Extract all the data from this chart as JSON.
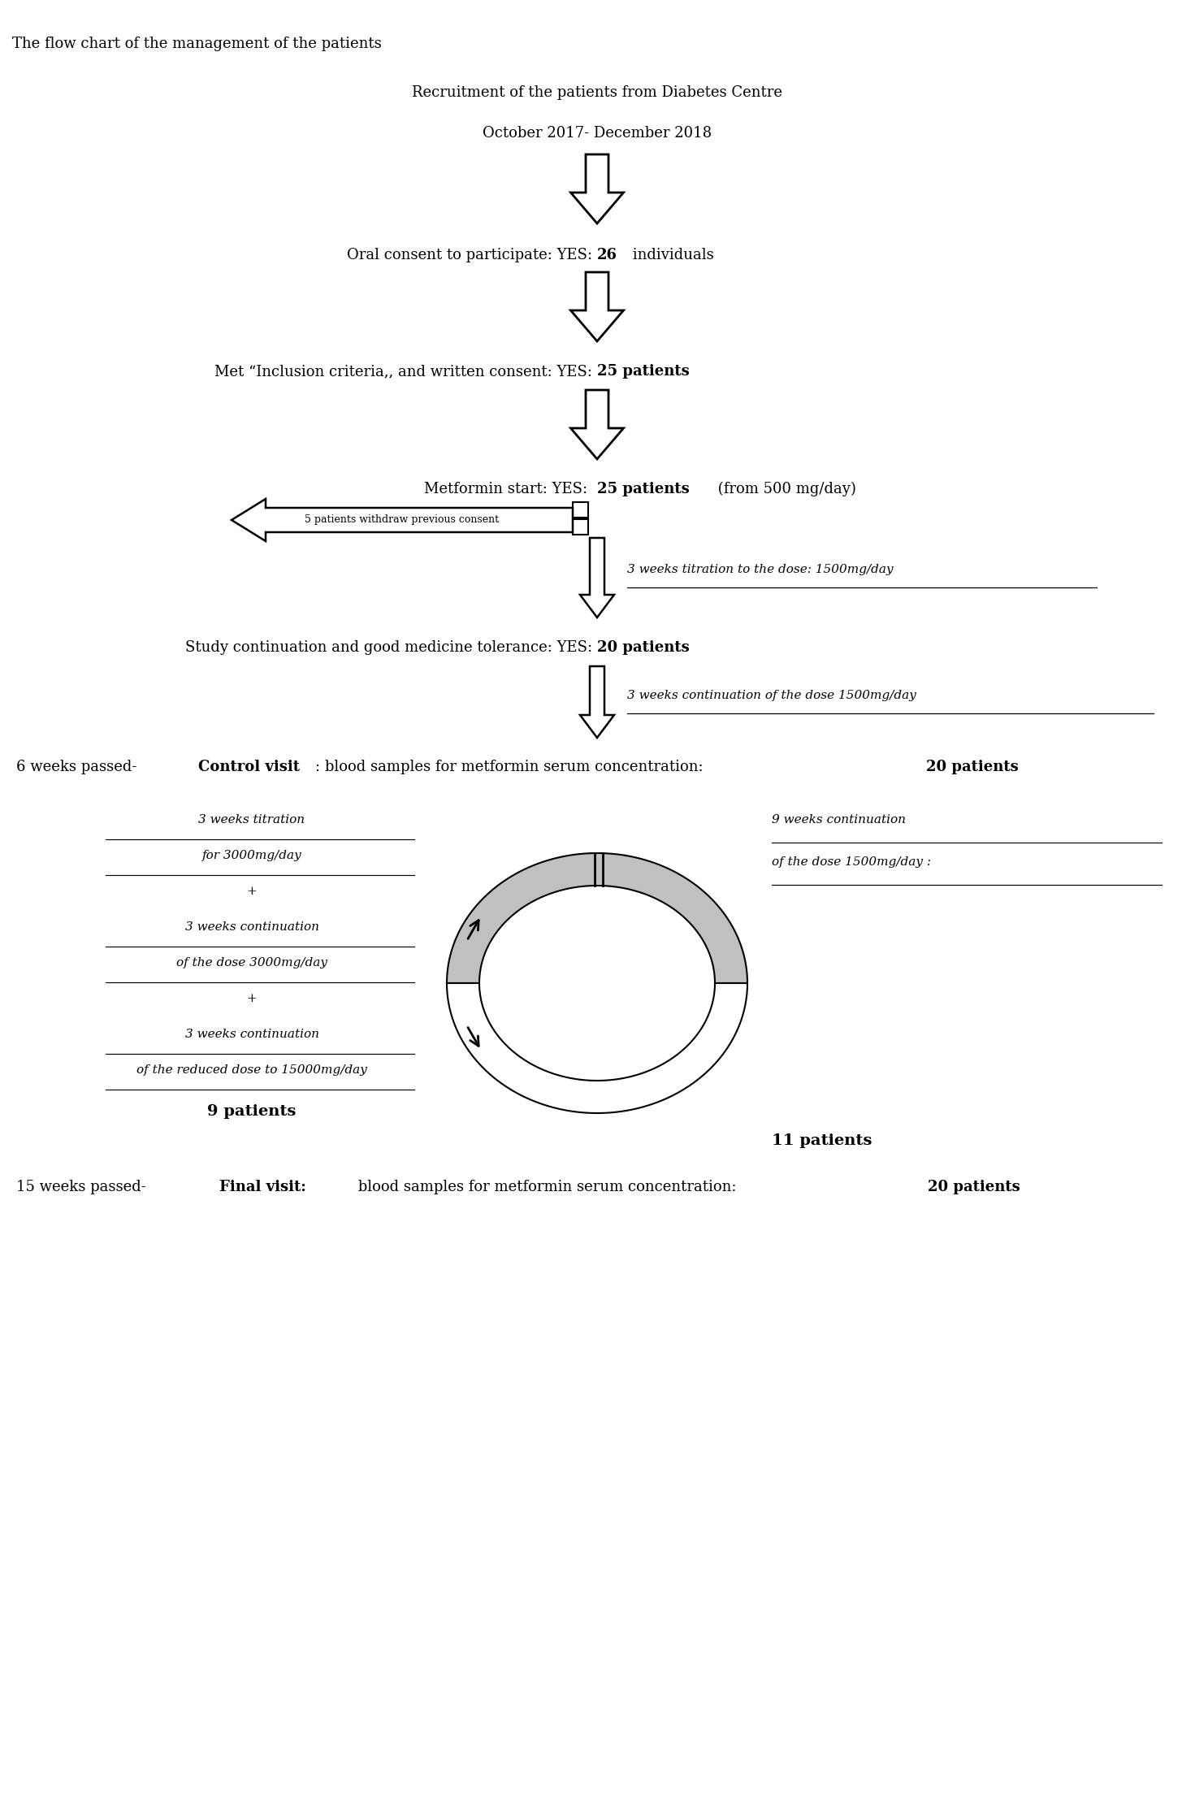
{
  "title": "The flow chart of the management of the patients",
  "step1_line1": "Recruitment of the patients from Diabetes Centre",
  "step1_line2": "October 2017- December 2018",
  "step2_normal": "Oral consent to participate: YES: ",
  "step2_bold": "26",
  "step2_rest": " individuals",
  "step3_normal": "Met “Inclusion criteria,, and written consent: YES: ",
  "step3_bold": "25 patients",
  "step4_normal": "Metformin start: YES:  ",
  "step4_bold": "25 patients",
  "step4_rest": " (from 500 mg/day)",
  "step4_side": "5 patients withdraw previous consent",
  "step4_right_italic": "3 weeks titration to the dose: 1500mg/day",
  "step5_normal": "Study continuation and good medicine tolerance: YES: ",
  "step5_bold": "20 patients",
  "step5_right_italic": "3 weeks continuation of the dose 1500mg/day",
  "step6_normal": "6 weeks passed- ",
  "step6_bold": "Control visit",
  "step6_rest": ": blood samples for metformin serum concentration: ",
  "step6_bold2": "20 patients",
  "left_line1": "3 weeks titration",
  "left_line2": "for 3000mg/day",
  "left_line3": "+",
  "left_line4": "3 weeks continuation",
  "left_line5": "of the dose 3000mg/day",
  "left_line6": "+",
  "left_line7": "3 weeks continuation",
  "left_line8": "of the reduced dose to 15000mg/day",
  "left_patients": "9 patients",
  "right_top": "9 weeks continuation",
  "right_bottom": "of the dose 1500mg/day :",
  "right_patients": "11 patients",
  "step7_normal": "15 weeks passed- ",
  "step7_bold": "Final visit:",
  "step7_rest": " blood samples for metformin serum concentration: ",
  "step7_bold2": "20 patients",
  "bg_color": "#ffffff",
  "text_color": "#000000"
}
